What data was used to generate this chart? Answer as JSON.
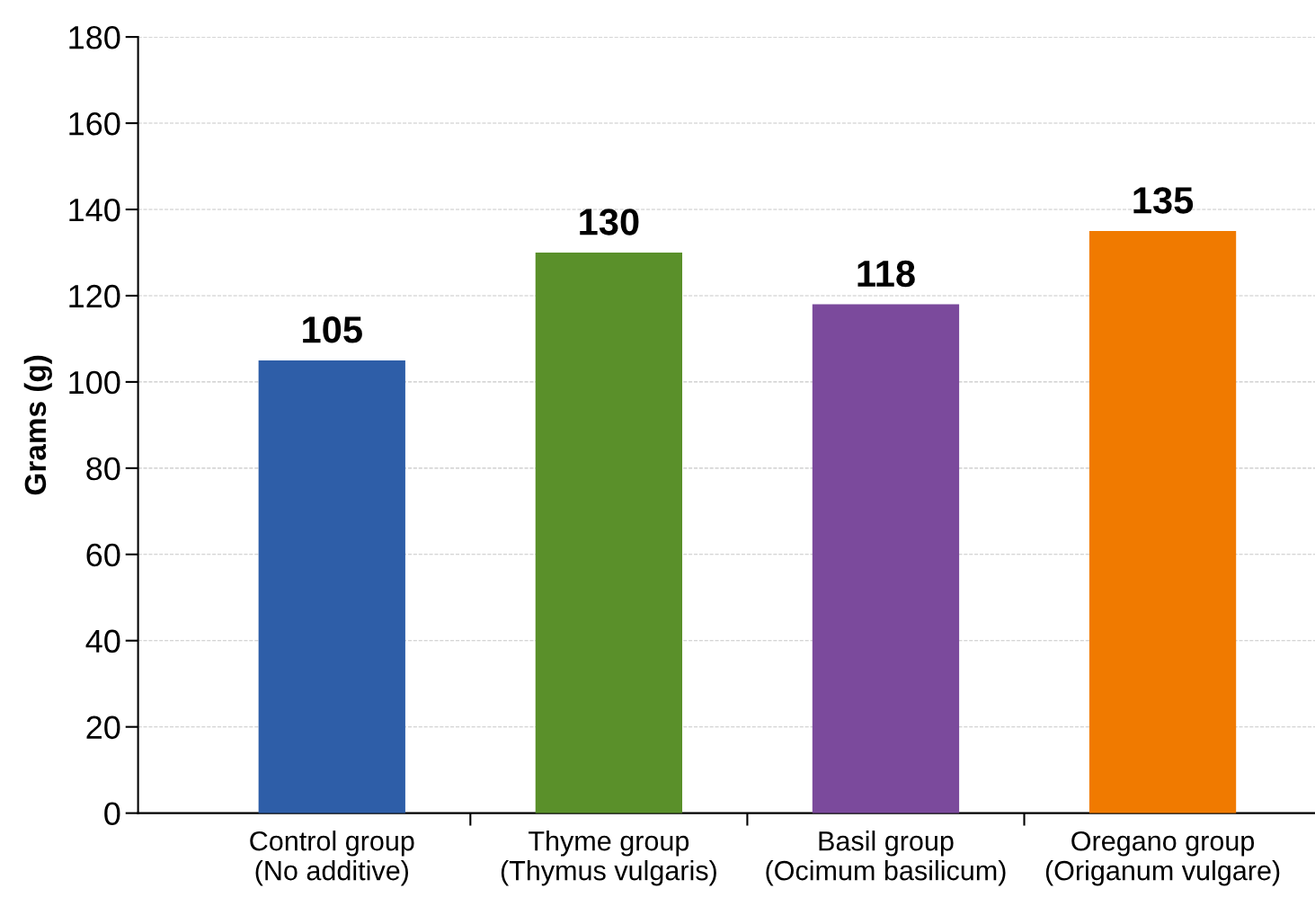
{
  "chart_data": {
    "type": "bar",
    "ylabel": "Grams (g)",
    "categories": [
      "Control group\n(No additive)",
      "Thyme group\n(Thymus vulgaris)",
      "Basil group\n(Ocimum basilicum)",
      "Oregano group\n(Origanum vulgare)"
    ],
    "values": [
      105,
      130,
      118,
      135
    ],
    "colors": [
      "#2e5ea8",
      "#5a902a",
      "#7b4a9c",
      "#f07a00"
    ],
    "ylim": [
      0,
      180
    ],
    "yticks": [
      0,
      20,
      40,
      60,
      80,
      100,
      120,
      140,
      160,
      180
    ],
    "grid": "y",
    "data_labels": true
  }
}
